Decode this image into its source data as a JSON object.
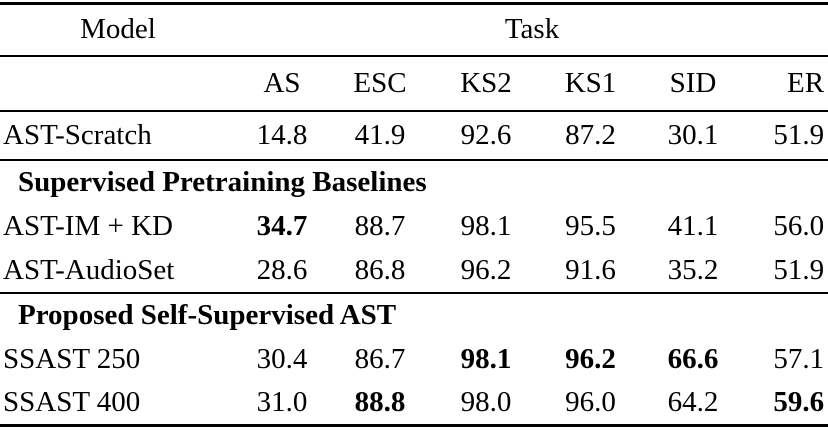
{
  "table": {
    "model_header": "Model",
    "task_header": "Task",
    "task_columns": [
      "AS",
      "ESC",
      "KS2",
      "KS1",
      "SID",
      "ER"
    ],
    "groups": [
      {
        "section": null,
        "rows": [
          {
            "model": "AST-Scratch",
            "values": [
              "14.8",
              "41.9",
              "92.6",
              "87.2",
              "30.1",
              "51.9"
            ],
            "bold": []
          }
        ]
      },
      {
        "section": "Supervised Pretraining Baselines",
        "rows": [
          {
            "model": "AST-IM + KD",
            "values": [
              "34.7",
              "88.7",
              "98.1",
              "95.5",
              "41.1",
              "56.0"
            ],
            "bold": [
              0
            ]
          },
          {
            "model": "AST-AudioSet",
            "values": [
              "28.6",
              "86.8",
              "96.2",
              "91.6",
              "35.2",
              "51.9"
            ],
            "bold": []
          }
        ]
      },
      {
        "section": "Proposed Self-Supervised AST",
        "rows": [
          {
            "model": "SSAST 250",
            "values": [
              "30.4",
              "86.7",
              "98.1",
              "96.2",
              "66.6",
              "57.1"
            ],
            "bold": [
              2,
              3,
              4
            ]
          },
          {
            "model": "SSAST 400",
            "values": [
              "31.0",
              "88.8",
              "98.0",
              "96.0",
              "64.2",
              "59.6"
            ],
            "bold": [
              1,
              5
            ]
          }
        ]
      }
    ],
    "colors": {
      "text": "#000000",
      "background": "#ffffff",
      "rule": "#000000"
    }
  }
}
